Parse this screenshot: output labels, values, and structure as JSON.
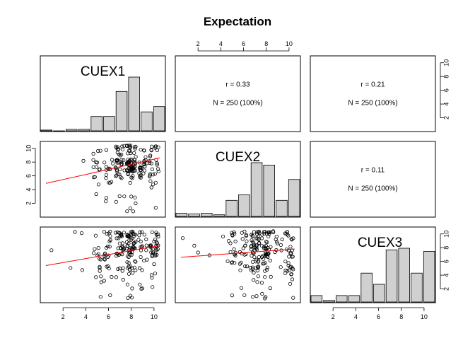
{
  "title": "Expectation",
  "chart_data": {
    "type": "pairs",
    "title": "Expectation",
    "variables": [
      "CUEX1",
      "CUEX2",
      "CUEX3"
    ],
    "axis_ticks": [
      "2",
      "4",
      "6",
      "8",
      "10"
    ],
    "axis_range": [
      0,
      11
    ],
    "histograms": [
      {
        "variable": "CUEX1",
        "bins": [
          "1",
          "2",
          "3",
          "4",
          "5",
          "6",
          "7",
          "8",
          "9",
          "10"
        ],
        "values": [
          1,
          0,
          2,
          2,
          19,
          19,
          52,
          71,
          25,
          32
        ]
      },
      {
        "variable": "CUEX2",
        "bins": [
          "1",
          "2",
          "3",
          "4",
          "5",
          "6",
          "7",
          "8",
          "9",
          "10"
        ],
        "values": [
          4,
          3,
          4,
          2,
          20,
          27,
          67,
          64,
          20,
          46
        ]
      },
      {
        "variable": "CUEX3",
        "bins": [
          "1",
          "2",
          "3",
          "4",
          "5",
          "6",
          "7",
          "8",
          "9",
          "10"
        ],
        "values": [
          8,
          2,
          8,
          8,
          36,
          22,
          65,
          67,
          36,
          63
        ]
      }
    ],
    "correlations": [
      {
        "pair": [
          "CUEX1",
          "CUEX2"
        ],
        "r_text": "r = 0.33",
        "n_text": "N = 250 (100%)"
      },
      {
        "pair": [
          "CUEX1",
          "CUEX3"
        ],
        "r_text": "r = 0.21",
        "n_text": "N = 250 (100%)"
      },
      {
        "pair": [
          "CUEX2",
          "CUEX3"
        ],
        "r_text": "r = 0.11",
        "n_text": "N = 250 (100%)"
      }
    ],
    "scatter_fit_lines": [
      {
        "x": "CUEX1",
        "y": "CUEX2",
        "from": [
          0.5,
          4.9
        ],
        "to": [
          10.5,
          8.6
        ]
      },
      {
        "x": "CUEX1",
        "y": "CUEX3",
        "from": [
          0.5,
          5.4
        ],
        "to": [
          10.5,
          8.3
        ]
      },
      {
        "x": "CUEX2",
        "y": "CUEX3",
        "from": [
          0.5,
          6.6
        ],
        "to": [
          10.5,
          7.8
        ]
      }
    ],
    "fit_line_color": "#ff0000",
    "bar_fill": "#d0d0d0",
    "point_color": "#000000"
  }
}
